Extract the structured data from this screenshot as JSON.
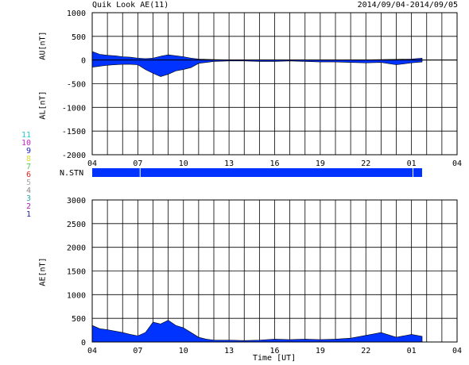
{
  "header": {
    "title": "Quik Look AE(11)",
    "date_range": "2014/09/04-2014/09/05"
  },
  "station_bar_label": "N.STN",
  "station_numbers": [
    {
      "label": "11",
      "color": "#22cccc"
    },
    {
      "label": "10",
      "color": "#cc22cc"
    },
    {
      "label": "9",
      "color": "#2222cc"
    },
    {
      "label": "8",
      "color": "#dddd33"
    },
    {
      "label": "7",
      "color": "#55cc55"
    },
    {
      "label": "6",
      "color": "#dd2222"
    },
    {
      "label": "5",
      "color": "#aaaaaa"
    },
    {
      "label": "4",
      "color": "#888888"
    },
    {
      "label": "3",
      "color": "#33aaaa"
    },
    {
      "label": "2",
      "color": "#aa22aa"
    },
    {
      "label": "1",
      "color": "#2222aa"
    }
  ],
  "colors": {
    "fill": "#0033ff",
    "grid": "#000000"
  },
  "chart_data": [
    {
      "type": "area",
      "panel": "AU/AL",
      "ylabel_upper": "AU[nT]",
      "ylabel_lower": "AL[nT]",
      "ylim": [
        -2000,
        1000
      ],
      "yticks": [
        1000,
        500,
        0,
        -500,
        -1000,
        -1500,
        -2000
      ],
      "xticks": [
        "04",
        "07",
        "10",
        "13",
        "16",
        "19",
        "22",
        "01",
        "04"
      ],
      "x_hours": [
        0,
        0.5,
        1,
        1.5,
        2,
        2.5,
        3,
        3.5,
        4,
        4.5,
        5,
        5.5,
        6,
        6.5,
        7,
        7.5,
        8,
        9,
        10,
        11,
        12,
        13,
        14,
        15,
        16,
        17,
        18,
        19,
        20,
        21,
        21.7
      ],
      "au": [
        180,
        120,
        100,
        90,
        70,
        60,
        40,
        30,
        40,
        80,
        110,
        90,
        70,
        40,
        20,
        15,
        10,
        5,
        5,
        5,
        0,
        0,
        0,
        0,
        0,
        0,
        5,
        10,
        15,
        20,
        40
      ],
      "al": [
        -150,
        -130,
        -110,
        -100,
        -90,
        -90,
        -100,
        -200,
        -280,
        -350,
        -300,
        -230,
        -200,
        -160,
        -70,
        -50,
        -30,
        -20,
        -20,
        -30,
        -30,
        -20,
        -30,
        -40,
        -40,
        -50,
        -60,
        -50,
        -100,
        -60,
        -40
      ]
    },
    {
      "type": "area",
      "panel": "AE",
      "ylabel": "AE[nT]",
      "xlabel": "Time [UT]",
      "ylim": [
        0,
        3000
      ],
      "yticks": [
        3000,
        2500,
        2000,
        1500,
        1000,
        500,
        0
      ],
      "xticks": [
        "04",
        "07",
        "10",
        "13",
        "16",
        "19",
        "22",
        "01",
        "04"
      ],
      "x_hours": [
        0,
        0.5,
        1,
        1.5,
        2,
        2.5,
        3,
        3.5,
        4,
        4.5,
        5,
        5.5,
        6,
        6.5,
        7,
        7.5,
        8,
        9,
        10,
        11,
        12,
        13,
        14,
        15,
        16,
        17,
        18,
        19,
        20,
        21,
        21.7
      ],
      "ae": [
        350,
        280,
        260,
        230,
        200,
        160,
        130,
        200,
        420,
        380,
        460,
        350,
        300,
        200,
        100,
        60,
        40,
        40,
        30,
        40,
        60,
        50,
        60,
        50,
        60,
        80,
        140,
        200,
        100,
        160,
        120
      ]
    }
  ]
}
